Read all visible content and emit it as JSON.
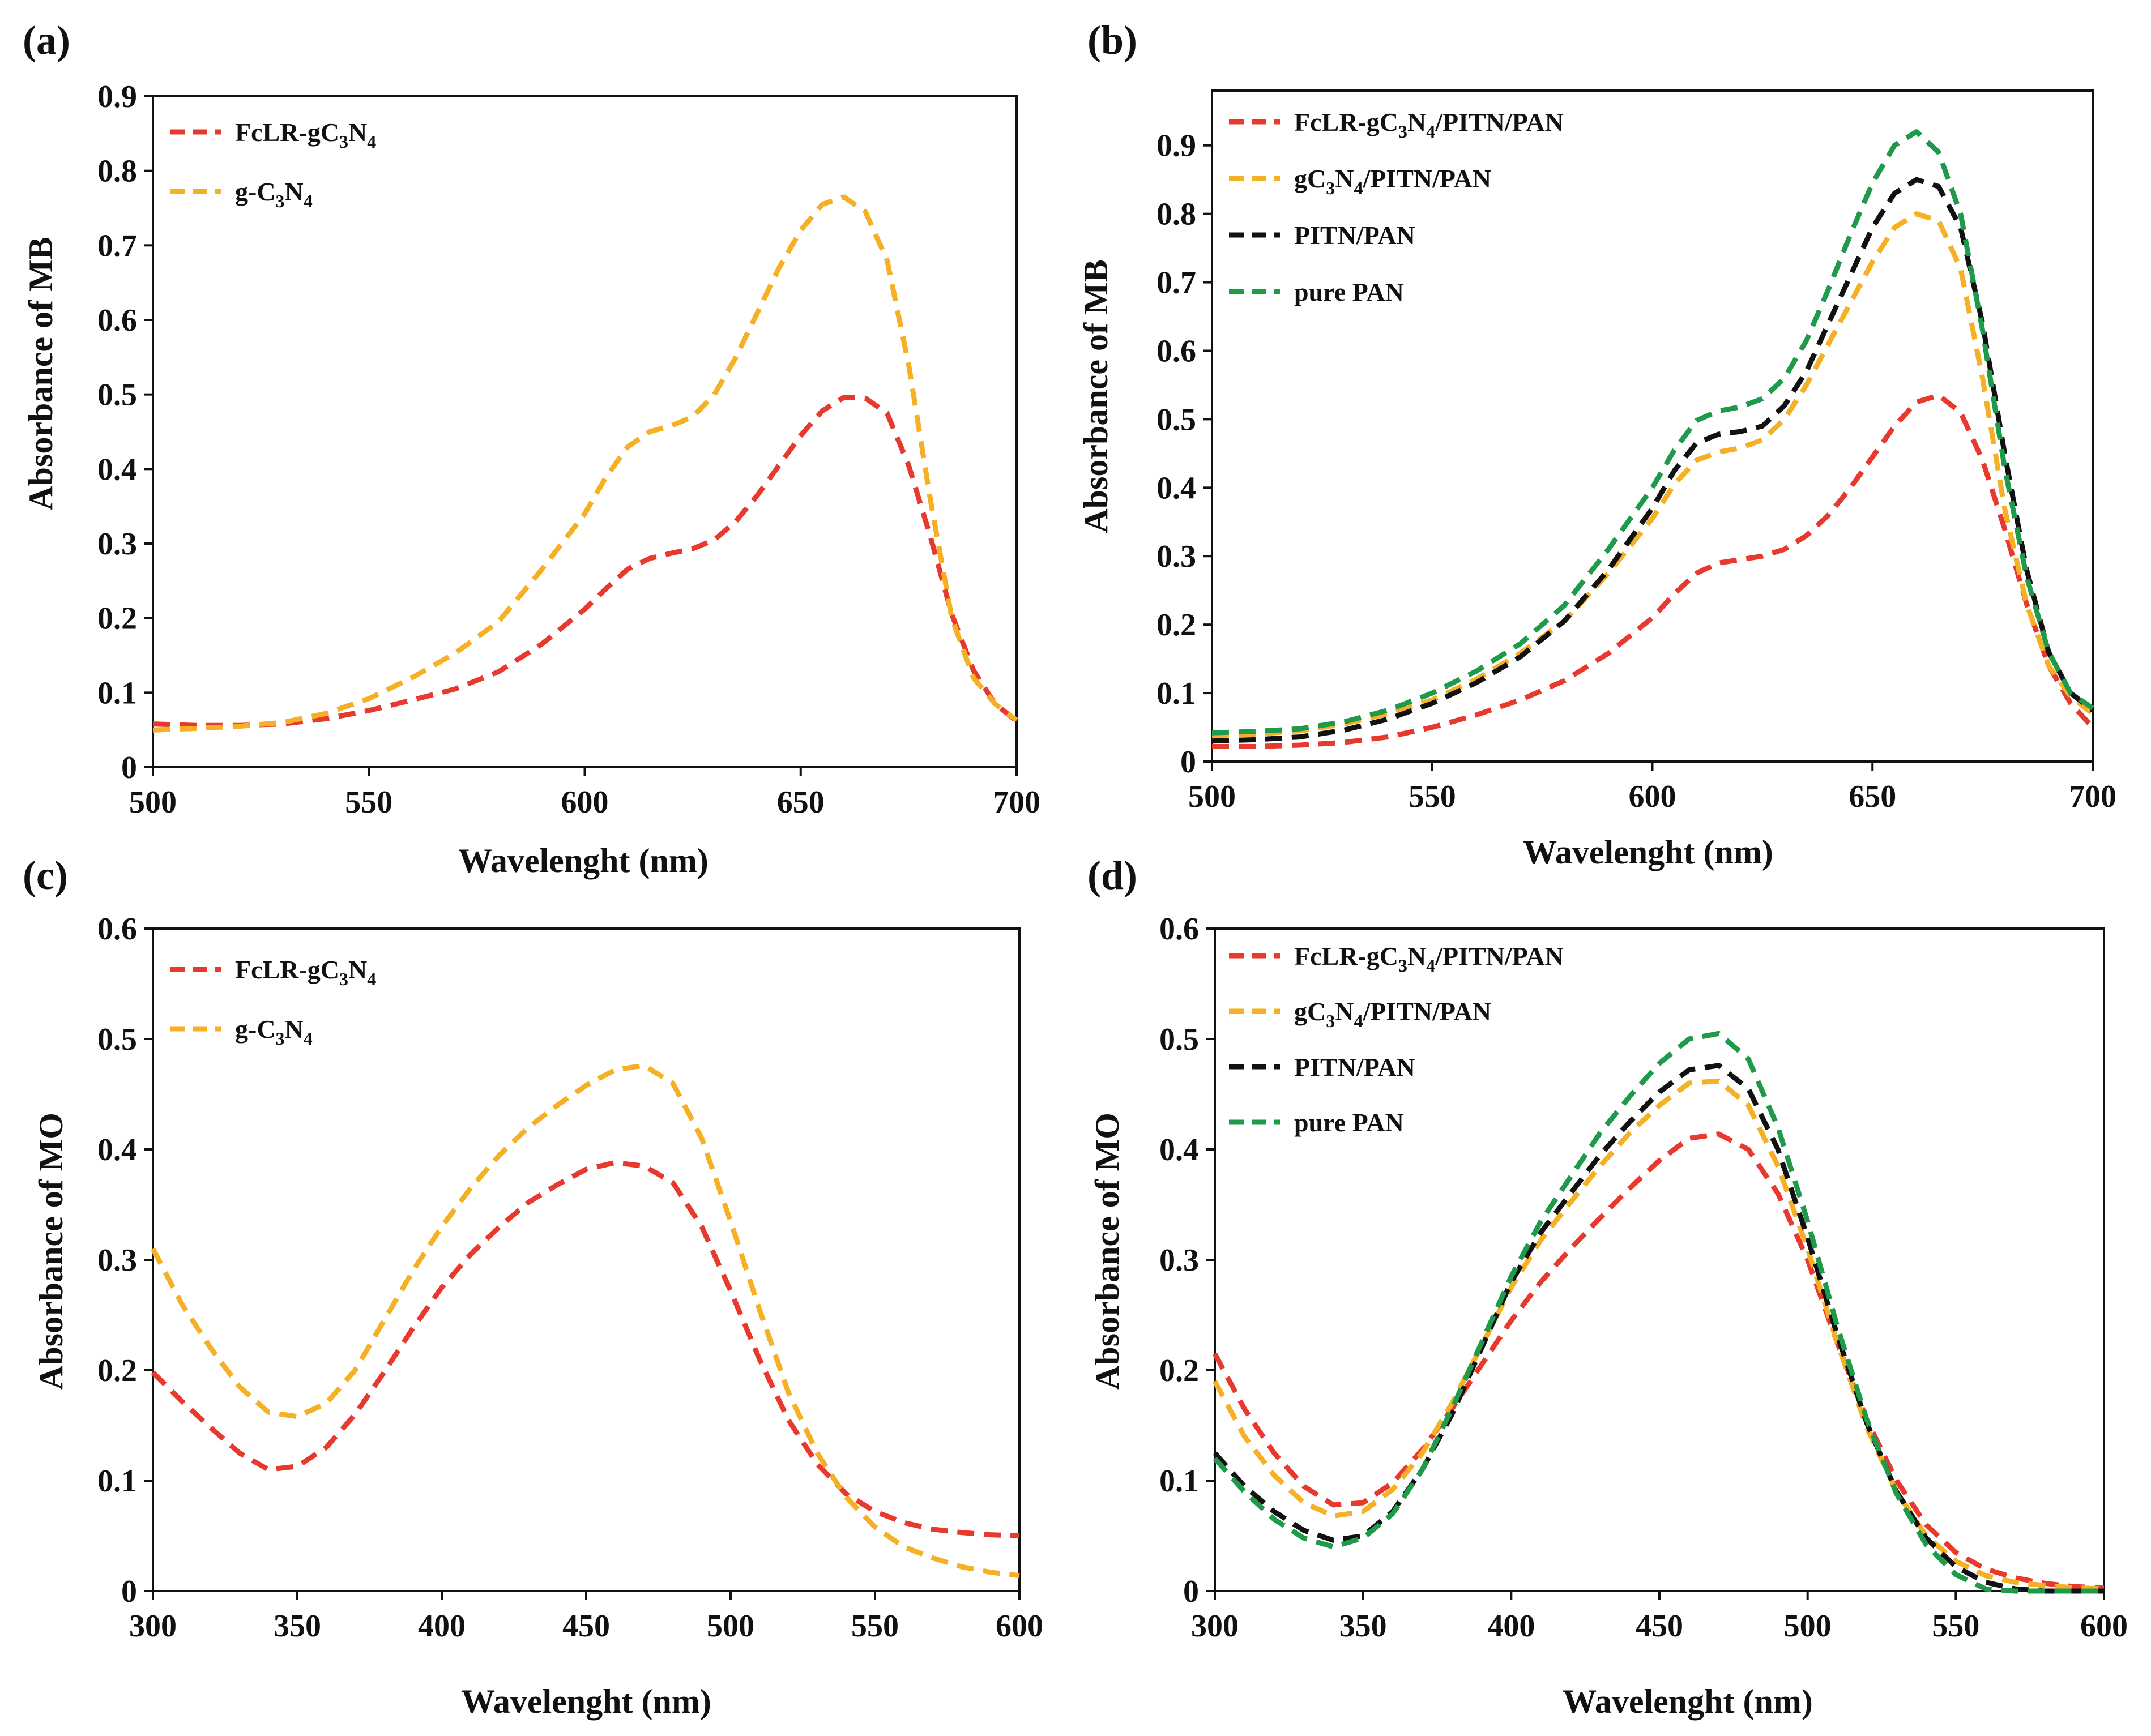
{
  "chart_data": [
    {
      "panel": "(a)",
      "type": "line",
      "xlabel": "Wavelenght (nm)",
      "ylabel": "Absorbance of MB",
      "xlim": [
        500,
        700
      ],
      "ylim": [
        0,
        0.9
      ],
      "xticks": [
        500,
        550,
        600,
        650,
        700
      ],
      "yticks": [
        0,
        0.1,
        0.2,
        0.3,
        0.4,
        0.5,
        0.6,
        0.7,
        0.8,
        0.9
      ],
      "legend_position": "top-left",
      "series": [
        {
          "name": "FcLR-gC3N4",
          "name_parts": [
            "FcLR-gC",
            "3",
            "N",
            "4",
            ""
          ],
          "color": "#e8392f",
          "x": [
            500,
            510,
            520,
            530,
            540,
            550,
            560,
            570,
            580,
            590,
            600,
            605,
            610,
            615,
            620,
            625,
            630,
            635,
            640,
            645,
            650,
            655,
            660,
            665,
            670,
            675,
            680,
            685,
            690,
            695,
            700
          ],
          "y": [
            0.058,
            0.056,
            0.056,
            0.058,
            0.065,
            0.076,
            0.09,
            0.105,
            0.128,
            0.165,
            0.212,
            0.24,
            0.266,
            0.28,
            0.287,
            0.293,
            0.305,
            0.33,
            0.365,
            0.405,
            0.445,
            0.478,
            0.496,
            0.495,
            0.475,
            0.405,
            0.31,
            0.205,
            0.13,
            0.085,
            0.062
          ]
        },
        {
          "name": "g-C3N4",
          "name_parts": [
            "g-C",
            "3",
            "N",
            "4",
            ""
          ],
          "color": "#f6b026",
          "x": [
            500,
            510,
            520,
            530,
            540,
            550,
            560,
            570,
            580,
            590,
            600,
            605,
            610,
            615,
            620,
            625,
            630,
            635,
            640,
            645,
            650,
            655,
            660,
            665,
            670,
            675,
            680,
            685,
            690,
            695,
            700
          ],
          "y": [
            0.05,
            0.052,
            0.055,
            0.06,
            0.072,
            0.092,
            0.12,
            0.153,
            0.195,
            0.265,
            0.34,
            0.39,
            0.43,
            0.45,
            0.458,
            0.47,
            0.5,
            0.55,
            0.61,
            0.67,
            0.72,
            0.755,
            0.765,
            0.745,
            0.68,
            0.54,
            0.36,
            0.2,
            0.12,
            0.085,
            0.063
          ]
        }
      ]
    },
    {
      "panel": "(b)",
      "type": "line",
      "xlabel": "Wavelenght (nm)",
      "ylabel": "Absorbance of MB",
      "xlim": [
        500,
        700
      ],
      "ylim": [
        0,
        0.98
      ],
      "xticks": [
        500,
        550,
        600,
        650,
        700
      ],
      "yticks": [
        0,
        0.1,
        0.2,
        0.3,
        0.4,
        0.5,
        0.6,
        0.7,
        0.8,
        0.9
      ],
      "legend_position": "top-left",
      "series": [
        {
          "name": "FcLR-gC3N4/PITN/PAN",
          "name_parts": [
            "FcLR-gC",
            "3",
            "N",
            "4",
            "/PITN/PAN"
          ],
          "color": "#e8392f",
          "x": [
            500,
            510,
            520,
            530,
            540,
            550,
            560,
            570,
            580,
            590,
            600,
            605,
            610,
            615,
            620,
            625,
            630,
            635,
            640,
            645,
            650,
            655,
            660,
            665,
            670,
            675,
            680,
            685,
            690,
            695,
            700
          ],
          "y": [
            0.022,
            0.022,
            0.024,
            0.028,
            0.036,
            0.05,
            0.068,
            0.09,
            0.118,
            0.158,
            0.21,
            0.245,
            0.275,
            0.29,
            0.295,
            0.3,
            0.31,
            0.33,
            0.36,
            0.4,
            0.445,
            0.49,
            0.525,
            0.535,
            0.51,
            0.44,
            0.34,
            0.23,
            0.14,
            0.085,
            0.05
          ]
        },
        {
          "name": "gC3N4/PITN/PAN",
          "name_parts": [
            "gC",
            "3",
            "N",
            "4",
            "/PITN/PAN"
          ],
          "color": "#f6b026",
          "x": [
            500,
            510,
            520,
            530,
            540,
            550,
            560,
            570,
            580,
            590,
            600,
            605,
            610,
            615,
            620,
            625,
            630,
            635,
            640,
            645,
            650,
            655,
            660,
            665,
            670,
            675,
            680,
            685,
            690,
            695,
            700
          ],
          "y": [
            0.038,
            0.04,
            0.045,
            0.055,
            0.07,
            0.09,
            0.12,
            0.158,
            0.205,
            0.275,
            0.355,
            0.405,
            0.44,
            0.452,
            0.458,
            0.47,
            0.5,
            0.55,
            0.61,
            0.67,
            0.73,
            0.78,
            0.8,
            0.79,
            0.72,
            0.56,
            0.37,
            0.23,
            0.14,
            0.095,
            0.07
          ]
        },
        {
          "name": "PITN/PAN",
          "name_parts": [
            "PITN/PAN"
          ],
          "color": "#111111",
          "x": [
            500,
            510,
            520,
            530,
            540,
            550,
            560,
            570,
            580,
            590,
            600,
            605,
            610,
            615,
            620,
            625,
            630,
            635,
            640,
            645,
            650,
            655,
            660,
            665,
            670,
            675,
            680,
            685,
            690,
            695,
            700
          ],
          "y": [
            0.03,
            0.032,
            0.036,
            0.046,
            0.062,
            0.085,
            0.115,
            0.153,
            0.205,
            0.28,
            0.37,
            0.425,
            0.465,
            0.478,
            0.482,
            0.49,
            0.52,
            0.57,
            0.64,
            0.71,
            0.78,
            0.83,
            0.85,
            0.84,
            0.78,
            0.64,
            0.45,
            0.28,
            0.16,
            0.1,
            0.075
          ]
        },
        {
          "name": "pure PAN",
          "name_parts": [
            "pure PAN"
          ],
          "color": "#1f9a4a",
          "x": [
            500,
            510,
            520,
            530,
            540,
            550,
            560,
            570,
            580,
            590,
            600,
            605,
            610,
            615,
            620,
            625,
            630,
            635,
            640,
            645,
            650,
            655,
            660,
            665,
            670,
            675,
            680,
            685,
            690,
            695,
            700
          ],
          "y": [
            0.042,
            0.044,
            0.048,
            0.058,
            0.075,
            0.1,
            0.132,
            0.172,
            0.228,
            0.31,
            0.4,
            0.455,
            0.498,
            0.512,
            0.518,
            0.53,
            0.56,
            0.615,
            0.69,
            0.77,
            0.845,
            0.9,
            0.92,
            0.89,
            0.8,
            0.63,
            0.43,
            0.27,
            0.16,
            0.1,
            0.078
          ]
        }
      ]
    },
    {
      "panel": "(c)",
      "type": "line",
      "xlabel": "Wavelenght (nm)",
      "ylabel": "Absorbance of MO",
      "xlim": [
        300,
        600
      ],
      "ylim": [
        0,
        0.6
      ],
      "xticks": [
        300,
        350,
        400,
        450,
        500,
        550,
        600
      ],
      "yticks": [
        0,
        0.1,
        0.2,
        0.3,
        0.4,
        0.5,
        0.6
      ],
      "legend_position": "top-left",
      "series": [
        {
          "name": "FcLR-gC3N4",
          "name_parts": [
            "FcLR-gC",
            "3",
            "N",
            "4",
            ""
          ],
          "color": "#e8392f",
          "x": [
            300,
            310,
            320,
            330,
            340,
            350,
            360,
            370,
            380,
            390,
            400,
            410,
            420,
            430,
            440,
            450,
            460,
            470,
            480,
            490,
            500,
            510,
            520,
            530,
            540,
            550,
            560,
            570,
            580,
            590,
            600
          ],
          "y": [
            0.198,
            0.172,
            0.148,
            0.125,
            0.11,
            0.113,
            0.13,
            0.16,
            0.198,
            0.238,
            0.275,
            0.305,
            0.33,
            0.352,
            0.368,
            0.382,
            0.388,
            0.385,
            0.37,
            0.33,
            0.272,
            0.21,
            0.155,
            0.115,
            0.088,
            0.072,
            0.062,
            0.056,
            0.053,
            0.051,
            0.05
          ]
        },
        {
          "name": "g-C3N4",
          "name_parts": [
            "g-C",
            "3",
            "N",
            "4",
            ""
          ],
          "color": "#f6b026",
          "x": [
            300,
            310,
            320,
            330,
            340,
            350,
            360,
            370,
            380,
            390,
            400,
            410,
            420,
            430,
            440,
            450,
            460,
            470,
            480,
            490,
            500,
            510,
            520,
            530,
            540,
            550,
            560,
            570,
            580,
            590,
            600
          ],
          "y": [
            0.31,
            0.26,
            0.22,
            0.185,
            0.162,
            0.158,
            0.17,
            0.2,
            0.245,
            0.29,
            0.33,
            0.365,
            0.395,
            0.42,
            0.44,
            0.458,
            0.472,
            0.476,
            0.46,
            0.41,
            0.335,
            0.255,
            0.18,
            0.125,
            0.085,
            0.058,
            0.04,
            0.03,
            0.022,
            0.017,
            0.014
          ]
        }
      ]
    },
    {
      "panel": "(d)",
      "type": "line",
      "xlabel": "Wavelenght (nm)",
      "ylabel": "Absorbance of MO",
      "xlim": [
        300,
        600
      ],
      "ylim": [
        0,
        0.6
      ],
      "xticks": [
        300,
        350,
        400,
        450,
        500,
        550,
        600
      ],
      "yticks": [
        0,
        0.1,
        0.2,
        0.3,
        0.4,
        0.5,
        0.6
      ],
      "legend_position": "top-left",
      "series": [
        {
          "name": "FcLR-gC3N4/PITN/PAN",
          "name_parts": [
            "FcLR-gC",
            "3",
            "N",
            "4",
            "/PITN/PAN"
          ],
          "color": "#e8392f",
          "x": [
            300,
            310,
            320,
            330,
            340,
            350,
            360,
            370,
            380,
            390,
            400,
            410,
            420,
            430,
            440,
            450,
            460,
            470,
            480,
            490,
            500,
            510,
            520,
            530,
            540,
            550,
            560,
            570,
            580,
            590,
            600
          ],
          "y": [
            0.215,
            0.165,
            0.125,
            0.095,
            0.078,
            0.08,
            0.098,
            0.128,
            0.165,
            0.205,
            0.245,
            0.28,
            0.31,
            0.338,
            0.365,
            0.39,
            0.41,
            0.414,
            0.4,
            0.36,
            0.3,
            0.225,
            0.155,
            0.1,
            0.06,
            0.035,
            0.02,
            0.012,
            0.007,
            0.004,
            0.003
          ]
        },
        {
          "name": "gC3N4/PITN/PAN",
          "name_parts": [
            "gC",
            "3",
            "N",
            "4",
            "/PITN/PAN"
          ],
          "color": "#f6b026",
          "x": [
            300,
            310,
            320,
            330,
            340,
            350,
            360,
            370,
            380,
            390,
            400,
            410,
            420,
            430,
            440,
            450,
            460,
            470,
            480,
            490,
            500,
            510,
            520,
            530,
            540,
            550,
            560,
            570,
            580,
            590,
            600
          ],
          "y": [
            0.19,
            0.14,
            0.105,
            0.08,
            0.068,
            0.072,
            0.092,
            0.125,
            0.17,
            0.222,
            0.275,
            0.318,
            0.352,
            0.385,
            0.415,
            0.44,
            0.46,
            0.462,
            0.44,
            0.385,
            0.31,
            0.225,
            0.148,
            0.09,
            0.05,
            0.027,
            0.014,
            0.008,
            0.005,
            0.003,
            0.002
          ]
        },
        {
          "name": "PITN/PAN",
          "name_parts": [
            "PITN/PAN"
          ],
          "color": "#111111",
          "x": [
            300,
            310,
            320,
            330,
            340,
            350,
            360,
            370,
            380,
            390,
            400,
            410,
            420,
            430,
            440,
            450,
            460,
            470,
            480,
            490,
            500,
            510,
            520,
            530,
            540,
            550,
            560,
            570,
            580,
            590,
            600
          ],
          "y": [
            0.125,
            0.095,
            0.072,
            0.055,
            0.046,
            0.05,
            0.072,
            0.11,
            0.16,
            0.22,
            0.28,
            0.325,
            0.36,
            0.395,
            0.425,
            0.452,
            0.472,
            0.476,
            0.455,
            0.4,
            0.32,
            0.232,
            0.152,
            0.09,
            0.048,
            0.022,
            0.008,
            0.002,
            0.0,
            0.0,
            0.0
          ]
        },
        {
          "name": "pure PAN",
          "name_parts": [
            "pure PAN"
          ],
          "color": "#1f9a4a",
          "x": [
            300,
            310,
            320,
            330,
            340,
            350,
            360,
            370,
            380,
            390,
            400,
            410,
            420,
            430,
            440,
            450,
            460,
            470,
            480,
            490,
            500,
            510,
            520,
            530,
            540,
            550,
            560,
            570,
            580,
            590,
            600
          ],
          "y": [
            0.12,
            0.09,
            0.065,
            0.048,
            0.04,
            0.048,
            0.07,
            0.11,
            0.165,
            0.225,
            0.285,
            0.335,
            0.375,
            0.415,
            0.448,
            0.478,
            0.5,
            0.505,
            0.482,
            0.42,
            0.335,
            0.24,
            0.155,
            0.088,
            0.042,
            0.015,
            0.002,
            0.0,
            0.0,
            0.0,
            0.0
          ]
        }
      ]
    }
  ]
}
